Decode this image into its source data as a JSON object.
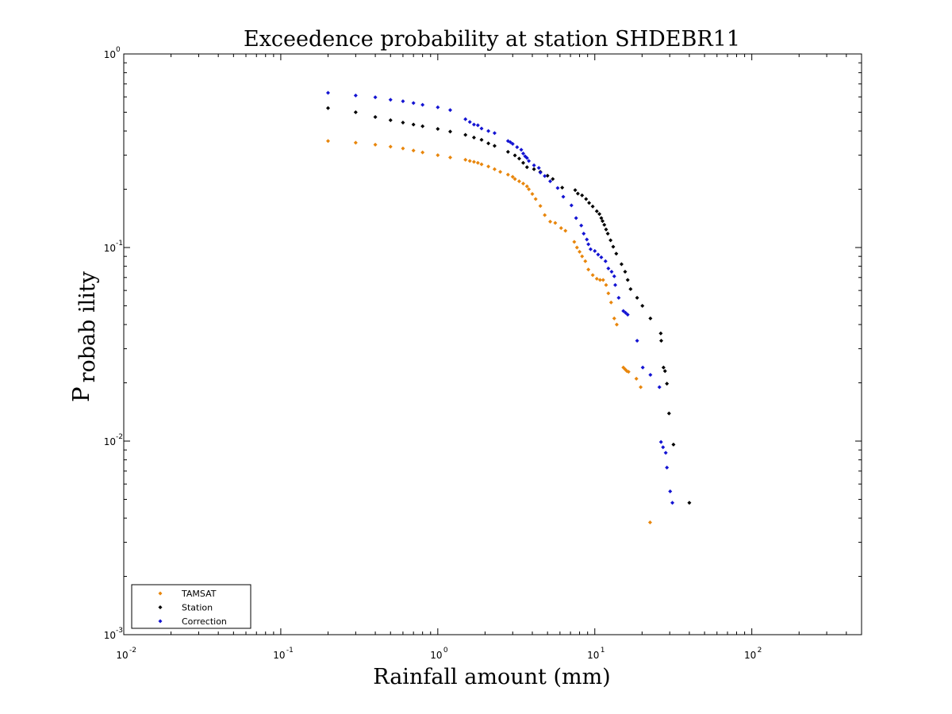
{
  "chart_data": {
    "type": "scatter",
    "title": "Exceedence probability at station SHDEBR11",
    "xlabel": "Rainfall amount (mm)",
    "ylabel_main": "P",
    "ylabel_sub": "robab ility",
    "x_scale": "log",
    "y_scale": "log",
    "xlim": [
      0.01,
      500
    ],
    "ylim": [
      0.001,
      1
    ],
    "x_ticks": [
      {
        "base": "10",
        "exp": "-2"
      },
      {
        "base": "10",
        "exp": "-1"
      },
      {
        "base": "10",
        "exp": "0"
      },
      {
        "base": "10",
        "exp": "1"
      },
      {
        "base": "10",
        "exp": "2"
      }
    ],
    "y_ticks": [
      {
        "base": "10",
        "exp": "-3"
      },
      {
        "base": "10",
        "exp": "-2"
      },
      {
        "base": "10",
        "exp": "-1"
      },
      {
        "base": "10",
        "exp": "0"
      }
    ],
    "grid": false,
    "legend_position": "bottom-left",
    "series": [
      {
        "name": "TAMSAT",
        "color": "#e8860c",
        "x": [
          0.2,
          0.3,
          0.4,
          0.5,
          0.6,
          0.7,
          0.8,
          1.0,
          1.2,
          1.5,
          1.6,
          1.7,
          1.8,
          1.9,
          2.1,
          2.3,
          2.5,
          2.8,
          3.0,
          3.1,
          3.3,
          3.5,
          3.7,
          3.8,
          4.0,
          4.2,
          4.5,
          4.8,
          5.2,
          5.6,
          6.1,
          6.5,
          7.4,
          7.7,
          8.0,
          8.3,
          8.7,
          9.1,
          9.7,
          10.3,
          10.8,
          11.3,
          11.8,
          12.2,
          12.7,
          13.3,
          13.8,
          15.2,
          15.6,
          16.0,
          16.4,
          18.4,
          19.6,
          22.5
        ],
        "y": [
          0.355,
          0.348,
          0.34,
          0.332,
          0.325,
          0.317,
          0.31,
          0.3,
          0.292,
          0.284,
          0.28,
          0.277,
          0.274,
          0.269,
          0.262,
          0.254,
          0.246,
          0.238,
          0.232,
          0.226,
          0.22,
          0.214,
          0.207,
          0.2,
          0.189,
          0.178,
          0.164,
          0.147,
          0.136,
          0.134,
          0.126,
          0.122,
          0.107,
          0.1,
          0.095,
          0.09,
          0.085,
          0.077,
          0.072,
          0.069,
          0.068,
          0.068,
          0.064,
          0.058,
          0.052,
          0.043,
          0.04,
          0.024,
          0.0235,
          0.023,
          0.0228,
          0.021,
          0.019,
          0.0038
        ]
      },
      {
        "name": "Station",
        "color": "#000000",
        "x": [
          0.2,
          0.3,
          0.4,
          0.5,
          0.6,
          0.7,
          0.8,
          1.0,
          1.2,
          1.5,
          1.7,
          1.9,
          2.1,
          2.3,
          2.8,
          3.1,
          3.3,
          3.5,
          3.7,
          4.1,
          4.5,
          5.0,
          5.4,
          6.2,
          7.5,
          7.8,
          8.3,
          8.8,
          9.2,
          9.7,
          10.3,
          10.7,
          11.0,
          11.2,
          11.5,
          11.8,
          12.1,
          12.6,
          13.1,
          13.7,
          14.8,
          15.6,
          16.2,
          16.9,
          18.6,
          20.1,
          22.6,
          26.3,
          26.5,
          27.4,
          28.0,
          28.8,
          29.7,
          31.7,
          40.0
        ],
        "y": [
          0.525,
          0.5,
          0.472,
          0.455,
          0.442,
          0.432,
          0.423,
          0.41,
          0.397,
          0.382,
          0.37,
          0.36,
          0.345,
          0.335,
          0.312,
          0.299,
          0.288,
          0.274,
          0.26,
          0.254,
          0.246,
          0.235,
          0.226,
          0.204,
          0.198,
          0.19,
          0.186,
          0.178,
          0.17,
          0.163,
          0.154,
          0.149,
          0.142,
          0.137,
          0.131,
          0.124,
          0.118,
          0.109,
          0.101,
          0.093,
          0.082,
          0.075,
          0.068,
          0.061,
          0.055,
          0.05,
          0.043,
          0.036,
          0.033,
          0.024,
          0.023,
          0.0198,
          0.0139,
          0.0096,
          0.0048
        ]
      },
      {
        "name": "Correction",
        "color": "#1414d2",
        "x": [
          0.2,
          0.3,
          0.4,
          0.5,
          0.6,
          0.7,
          0.8,
          1.0,
          1.2,
          1.5,
          1.6,
          1.7,
          1.8,
          1.9,
          2.1,
          2.3,
          2.8,
          2.9,
          3.0,
          3.2,
          3.4,
          3.5,
          3.6,
          3.7,
          3.8,
          4.1,
          4.4,
          4.5,
          4.8,
          5.2,
          5.8,
          6.3,
          7.1,
          7.6,
          8.2,
          8.5,
          8.9,
          9.1,
          9.4,
          10.0,
          10.5,
          11.0,
          11.7,
          12.2,
          12.8,
          13.3,
          13.5,
          14.2,
          15.2,
          15.7,
          16.2,
          18.6,
          20.2,
          22.6,
          25.8,
          26.4,
          27.2,
          28.3,
          28.8,
          30.2,
          31.2
        ],
        "y": [
          0.63,
          0.61,
          0.597,
          0.58,
          0.57,
          0.558,
          0.546,
          0.53,
          0.513,
          0.46,
          0.445,
          0.432,
          0.428,
          0.412,
          0.4,
          0.39,
          0.355,
          0.35,
          0.343,
          0.33,
          0.32,
          0.306,
          0.296,
          0.29,
          0.28,
          0.266,
          0.258,
          0.244,
          0.234,
          0.22,
          0.203,
          0.183,
          0.165,
          0.142,
          0.13,
          0.118,
          0.11,
          0.104,
          0.098,
          0.096,
          0.092,
          0.089,
          0.085,
          0.078,
          0.075,
          0.071,
          0.064,
          0.055,
          0.047,
          0.046,
          0.045,
          0.033,
          0.024,
          0.022,
          0.019,
          0.0099,
          0.0093,
          0.0087,
          0.0073,
          0.0055,
          0.0048
        ]
      }
    ]
  }
}
